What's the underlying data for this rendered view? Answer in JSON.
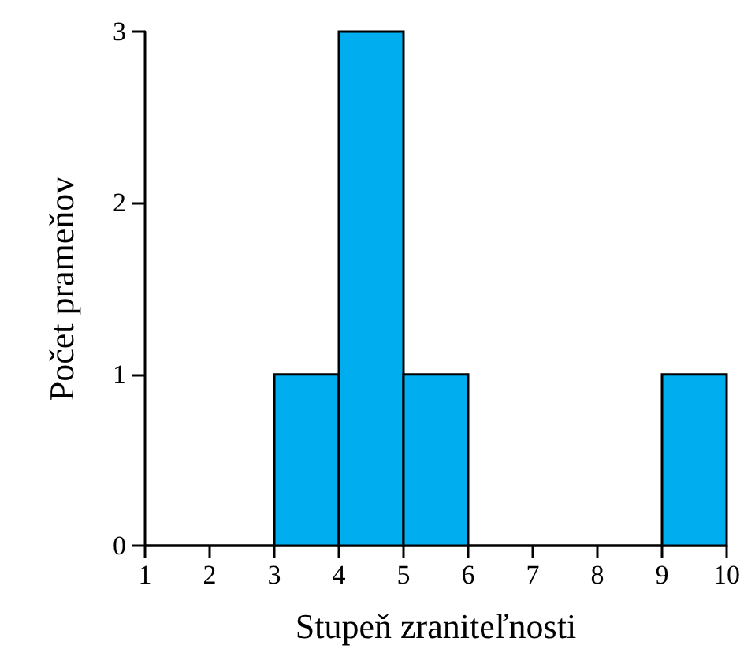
{
  "chart_data": {
    "type": "histogram",
    "xlabel": "Stupeň zraniteľnosti",
    "ylabel": "Počet prameňov",
    "bins": [
      1,
      2,
      3,
      4,
      5,
      6,
      7,
      8,
      9,
      10
    ],
    "values": [
      0,
      0,
      1,
      3,
      1,
      0,
      0,
      0,
      1
    ],
    "color": "#00aeef",
    "xlim": [
      1,
      10
    ],
    "xticks": [
      1,
      2,
      3,
      4,
      5,
      6,
      7,
      8,
      9,
      10
    ],
    "ylim": [
      0,
      3
    ],
    "yticks": [
      0,
      1,
      2,
      3
    ],
    "grid": false
  }
}
